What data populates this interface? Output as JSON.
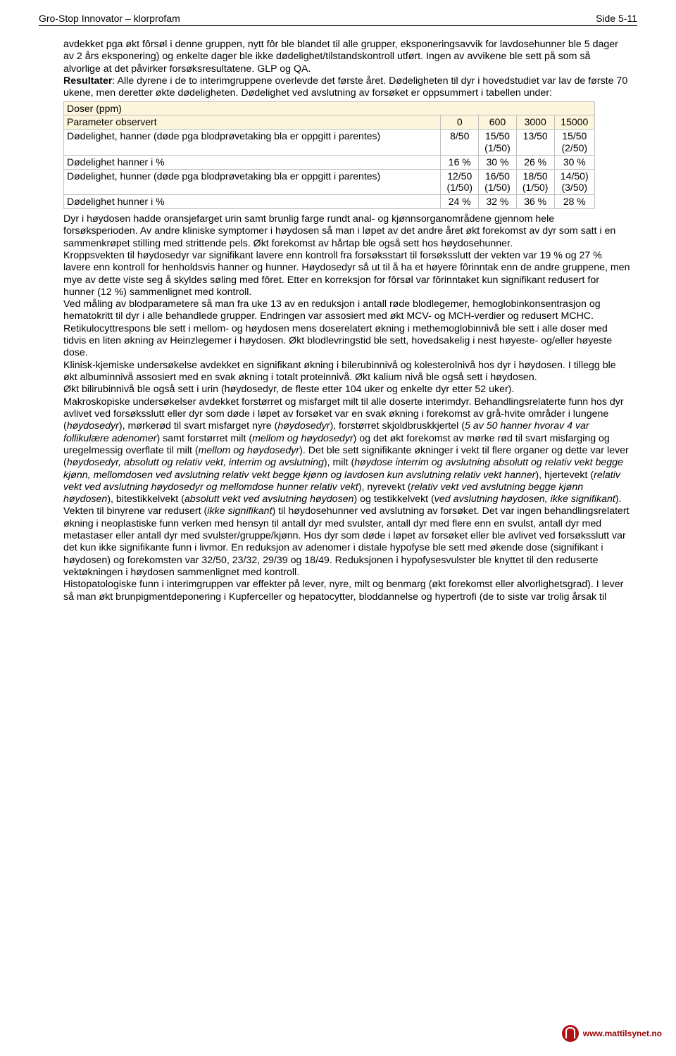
{
  "header": {
    "left": "Gro-Stop Innovator – klorprofam",
    "right": "Side 5-11"
  },
  "p1": "avdekket pga økt fôrsøl i denne gruppen, nytt fôr ble blandet til alle grupper, eksponeringsavvik for lavdosehunner ble 5 dager av 2 års eksponering) og enkelte dager ble ikke dødelighet/tilstandskontroll utført. Ingen av avvikene ble sett på som så alvorlige at det påvirker forsøksresultatene. GLP og QA.",
  "p2a": "Resultater",
  "p2b": ": Alle dyrene i de to interimgruppene overlevde det første året. Dødeligheten til dyr i hovedstudiet var lav de første 70 ukene, men deretter økte dødeligheten. Dødelighet ved avslutning av forsøket er oppsummert i tabellen under:",
  "table": {
    "doser": "Doser (ppm)",
    "param": "Parameter observert",
    "cols": [
      "0",
      "600",
      "3000",
      "15000"
    ],
    "rows": [
      {
        "label": "Dødelighet, hanner (døde pga blodprøvetaking bla er oppgitt i parentes)",
        "c": [
          "8/50",
          "15/50\n(1/50)",
          "13/50",
          "15/50\n(2/50)"
        ]
      },
      {
        "label": "Dødelighet hanner i %",
        "c": [
          "16 %",
          "30 %",
          "26 %",
          "30 %"
        ]
      },
      {
        "label": "Dødelighet, hunner (døde pga blodprøvetaking bla er oppgitt i parentes)",
        "c": [
          "12/50\n(1/50)",
          "16/50\n(1/50)",
          "18/50\n(1/50)",
          "14/50)\n(3/50)"
        ]
      },
      {
        "label": "Dødelighet hunner i %",
        "c": [
          "24 %",
          "32 %",
          "36 %",
          "28 %"
        ]
      }
    ]
  },
  "p3": "Dyr i høydosen hadde oransjefarget urin samt brunlig farge rundt anal- og kjønnsorganområdene gjennom hele forsøksperioden. Av andre kliniske symptomer i høydosen så man i løpet av det andre året økt forekomst av dyr som satt i en sammenkrøpet stilling med strittende pels. Økt forekomst av hårtap ble også sett hos høydosehunner.",
  "p4": "Kroppsvekten til høydosedyr var signifikant lavere enn kontroll fra forsøksstart til forsøksslutt der vekten var 19 % og 27 % lavere enn kontroll for henholdsvis hanner og hunner. Høydosedyr så ut til å ha et høyere fôrinntak enn de andre gruppene, men mye av dette viste seg å skyldes søling med fôret. Etter en korreksjon for fôrsøl var fôrinntaket kun signifikant redusert for hunner (12 %) sammenlignet med kontroll.",
  "p5": "Ved måling av blodparametere så man fra uke 13 av en reduksjon i antall røde blodlegemer, hemoglobinkonsentrasjon og hematokritt til dyr i alle behandlede grupper. Endringen var assosiert med økt MCV- og MCH-verdier og redusert MCHC. Retikulocyttrespons ble sett i mellom- og høydosen mens doserelatert økning i methemoglobinnivå ble sett i alle doser med tidvis en liten økning av Heinzlegemer i høydosen. Økt blodlevringstid ble sett, hovedsakelig i nest høyeste- og/eller høyeste dose.",
  "p6": "Klinisk-kjemiske undersøkelse avdekket en signifikant økning i bilerubinnivå og kolesterolnivå hos dyr i høydosen. I tillegg ble økt albuminnivå assosiert med en svak økning i totalt proteinnivå. Økt kalium nivå ble også sett i høydosen.",
  "p7": "Økt bilirubinnivå ble også sett i urin (høydosedyr, de fleste etter 104 uker og enkelte dyr etter 52 uker).",
  "p8": "Makroskopiske undersøkelser avdekket forstørret og misfarget milt til alle doserte interimdyr. Behandlingsrelaterte funn hos dyr avlivet ved forsøksslutt eller dyr som døde i løpet av forsøket var en svak økning i forekomst av grå-hvite områder i lungene (",
  "p8i1": "høydosedyr",
  "p8a": "), mørkerød til svart misfarget nyre (",
  "p8i2": "høydosedyr",
  "p8b": "), forstørret skjoldbruskkjertel (",
  "p8i3": "5 av 50 hanner hvorav 4 var follikulære adenomer",
  "p8c": ") samt forstørret milt (",
  "p8i4": "mellom og høydosedyr",
  "p8d": ") og det økt forekomst av mørke rød til svart misfarging og uregelmessig overflate til milt (",
  "p8i5": "mellom og høydosedyr",
  "p8e": "). Det ble sett signifikante økninger i vekt til flere organer og dette var lever (",
  "p8i6": "høydosedyr, absolutt og relativ vekt, interrim og avslutning",
  "p8f": "), milt (",
  "p8i7": "høydose interrim og avslutning absolutt og relativ vekt begge kjønn, mellomdosen ved avslutning relativ vekt begge kjønn og lavdosen kun avslutning relativ vekt hanner",
  "p8g": "), hjertevekt (",
  "p8i8": "relativ vekt ved avslutning høydosedyr og mellomdose hunner relativ vekt",
  "p8h": "), nyrevekt (",
  "p8i9": "relativ vekt ved avslutning begge kjønn høydosen",
  "p8j": "), bitestikkelvekt (",
  "p8i10": "absolutt vekt ved avslutning høydosen",
  "p8k": ") og testikkelvekt (",
  "p8i11": "ved avslutning høydosen, ikke signifikant",
  "p8l": "). Vekten til binyrene var redusert (",
  "p8i12": "ikke signifikant",
  "p8m": ") til høydosehunner ved avslutning av forsøket. Det var ingen behandlingsrelatert økning i neoplastiske funn verken med hensyn til antall dyr med svulster, antall dyr med flere enn en svulst, antall dyr med metastaser eller antall dyr med svulster/gruppe/kjønn. Hos dyr som døde i løpet av forsøket eller ble avlivet ved forsøksslutt var det kun ikke signifikante funn i livmor. En reduksjon av adenomer i distale hypofyse ble sett med økende dose (signifikant i høydosen) og forekomsten var 32/50, 23/32, 29/39 og 18/49. Reduksjonen i hypofysesvulster ble knyttet til den reduserte vektøkningen i høydosen sammenlignet med kontroll.",
  "p9": "Histopatologiske funn i interimgruppen var effekter på lever, nyre, milt og benmarg (økt forekomst eller alvorlighetsgrad). I lever så man økt brunpigmentdeponering i Kupferceller og hepatocytter, bloddannelse og hypertrofi (de to siste var trolig årsak til",
  "footer": "www.mattilsynet.no"
}
